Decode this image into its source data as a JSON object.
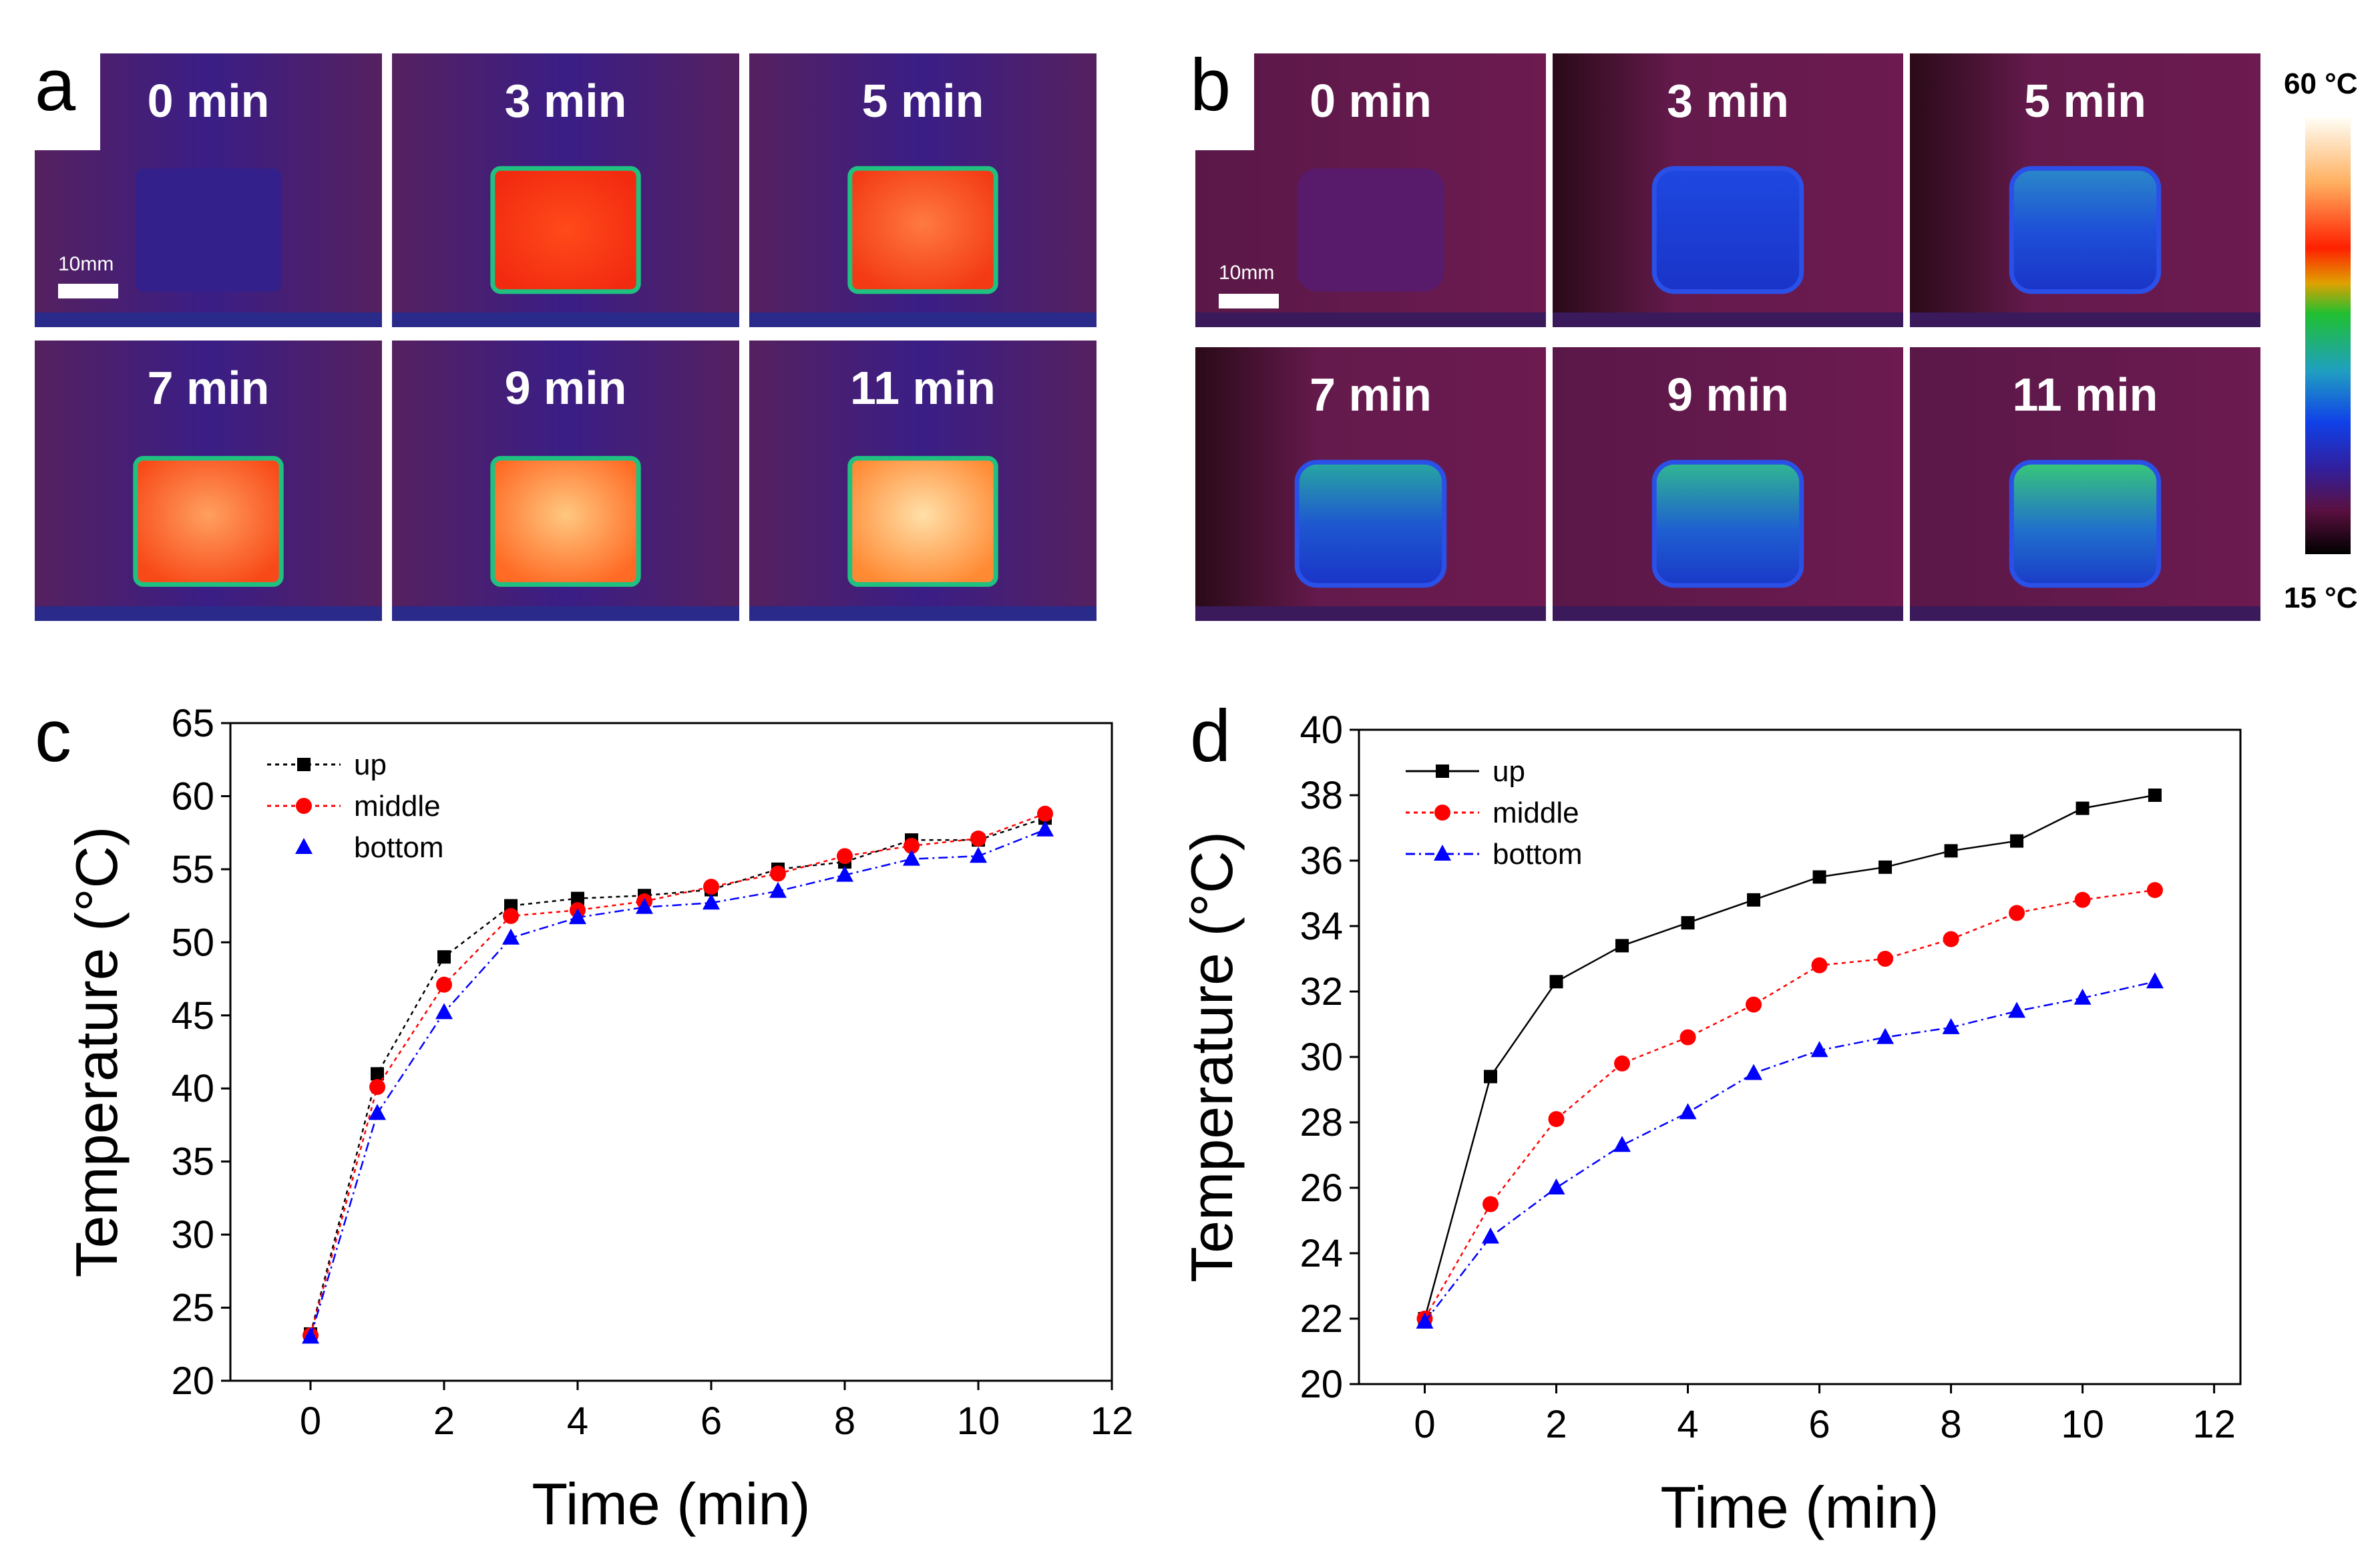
{
  "panels": {
    "a": {
      "letter": "a",
      "tiles": [
        {
          "label": "0 min",
          "state": "cold"
        },
        {
          "label": "3 min",
          "state": "hot1"
        },
        {
          "label": "5 min",
          "state": "hot2"
        },
        {
          "label": "7 min",
          "state": "hot3"
        },
        {
          "label": "9 min",
          "state": "hot4"
        },
        {
          "label": "11 min",
          "state": "hot5"
        }
      ],
      "scale_bar": "10mm"
    },
    "b": {
      "letter": "b",
      "tiles": [
        {
          "label": "0 min",
          "state": "cold"
        },
        {
          "label": "3 min",
          "state": "blue1"
        },
        {
          "label": "5 min",
          "state": "blue2"
        },
        {
          "label": "7 min",
          "state": "blue3"
        },
        {
          "label": "9 min",
          "state": "blue4"
        },
        {
          "label": "11 min",
          "state": "blue5"
        }
      ],
      "scale_bar": "10mm"
    },
    "colorbar": {
      "top_label": "60 °C",
      "bottom_label": "15 °C"
    }
  },
  "chart_data": [
    {
      "panel": "c",
      "type": "line",
      "xlabel": "Time (min)",
      "ylabel": "Temperature (°C)",
      "xlim": [
        -1.2,
        12
      ],
      "ylim": [
        20,
        65
      ],
      "xticks": [
        0,
        2,
        4,
        6,
        8,
        10,
        12
      ],
      "yticks": [
        20,
        25,
        30,
        35,
        40,
        45,
        50,
        55,
        60,
        65
      ],
      "x": [
        0,
        1,
        2,
        3,
        4,
        5,
        6,
        7,
        8,
        9,
        10,
        11
      ],
      "series": [
        {
          "name": "up",
          "color": "#000000",
          "marker": "square",
          "dash": "6,6",
          "values": [
            23.2,
            41.0,
            49.0,
            52.5,
            53.0,
            53.2,
            53.6,
            55.0,
            55.5,
            57.0,
            57.0,
            58.5
          ]
        },
        {
          "name": "middle",
          "color": "#ff0000",
          "marker": "circle",
          "dash": "6,6",
          "values": [
            23.1,
            40.1,
            47.1,
            51.8,
            52.2,
            52.8,
            53.8,
            54.7,
            55.9,
            56.6,
            57.1,
            58.8
          ]
        },
        {
          "name": "bottom",
          "color": "#0000ff",
          "marker": "triangle",
          "dash": "14,6,3,6",
          "values": [
            23.0,
            38.3,
            45.2,
            50.3,
            51.7,
            52.4,
            52.7,
            53.5,
            54.6,
            55.7,
            55.9,
            57.7
          ]
        }
      ]
    },
    {
      "panel": "d",
      "type": "line",
      "xlabel": "Time (min)",
      "ylabel": "Temperature (°C)",
      "xlim": [
        -1,
        12.4
      ],
      "ylim": [
        20,
        40
      ],
      "xticks": [
        0,
        2,
        4,
        6,
        8,
        10,
        12
      ],
      "yticks": [
        20,
        22,
        24,
        26,
        28,
        30,
        32,
        34,
        36,
        38,
        40
      ],
      "x": [
        0,
        1,
        2,
        3,
        4,
        5,
        6,
        7,
        8,
        9,
        10,
        11.1
      ],
      "series": [
        {
          "name": "up",
          "color": "#000000",
          "marker": "square",
          "dash": "",
          "values": [
            22.0,
            29.4,
            32.3,
            33.4,
            34.1,
            34.8,
            35.5,
            35.8,
            36.3,
            36.6,
            37.6,
            38.0
          ]
        },
        {
          "name": "middle",
          "color": "#ff0000",
          "marker": "circle",
          "dash": "6,6",
          "values": [
            22.0,
            25.5,
            28.1,
            29.8,
            30.6,
            31.6,
            32.8,
            33.0,
            33.6,
            34.4,
            34.8,
            35.1
          ]
        },
        {
          "name": "bottom",
          "color": "#0000ff",
          "marker": "triangle",
          "dash": "14,6,3,6",
          "values": [
            21.9,
            24.5,
            26.0,
            27.3,
            28.3,
            29.5,
            30.2,
            30.6,
            30.9,
            31.4,
            31.8,
            32.3
          ]
        }
      ]
    }
  ]
}
